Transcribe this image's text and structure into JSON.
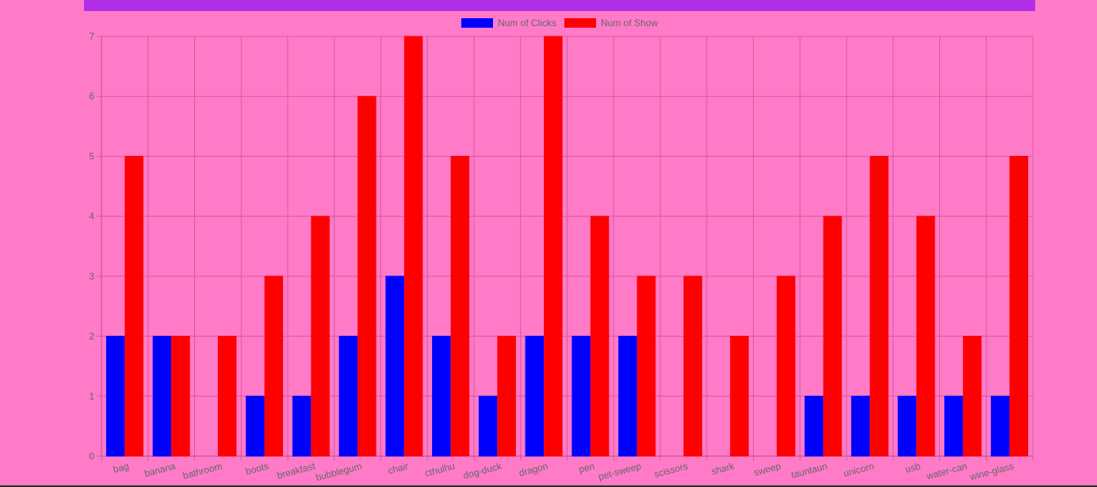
{
  "chart_data": {
    "type": "bar",
    "categories": [
      "bag",
      "banana",
      "bathroom",
      "boots",
      "breakfast",
      "bubblegum",
      "chair",
      "cthulhu",
      "dog-duck",
      "dragon",
      "pen",
      "pet-sweep",
      "scissors",
      "shark",
      "sweep",
      "tauntaun",
      "unicorn",
      "usb",
      "water-can",
      "wine-glass"
    ],
    "series": [
      {
        "name": "Num of Clicks",
        "color": "#0000ff",
        "values": [
          2,
          2,
          0,
          1,
          1,
          2,
          3,
          2,
          1,
          2,
          2,
          2,
          0,
          0,
          0,
          1,
          1,
          1,
          1,
          1
        ]
      },
      {
        "name": "Num of Show",
        "color": "#ff0000",
        "values": [
          5,
          2,
          2,
          3,
          4,
          6,
          7,
          5,
          2,
          7,
          4,
          3,
          3,
          2,
          3,
          4,
          5,
          4,
          2,
          5
        ]
      }
    ],
    "ylim": [
      0,
      7
    ],
    "yticks": [
      "0",
      "1",
      "2",
      "3",
      "4",
      "5",
      "6",
      "7"
    ],
    "grid": true,
    "legend_position": "top-center"
  },
  "colors": {
    "background": "#ff7bc8",
    "header": "#b02ee6",
    "grid": "#d8589e",
    "text": "#666666"
  }
}
